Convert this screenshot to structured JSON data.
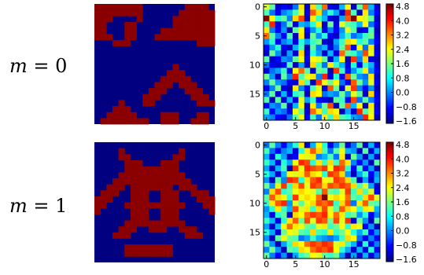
{
  "rows": [
    {
      "label_var": "m",
      "label_eq": "= 0"
    },
    {
      "label_var": "m",
      "label_eq": "= 1"
    }
  ],
  "colors": {
    "binary_on": "#8b0000",
    "binary_off": "#000080"
  },
  "colorbar_ticks": [
    "4.8",
    "4.0",
    "3.2",
    "2.4",
    "1.6",
    "0.8",
    "0.0",
    "−0.8",
    "−1.6"
  ],
  "axis_ticks": {
    "x": [
      "0",
      "5",
      "10",
      "15"
    ],
    "y": [
      "0",
      "5",
      "10",
      "15"
    ]
  },
  "chart_data": [
    {
      "type": "heatmap",
      "name": "",
      "colormap": "jet",
      "vmin": -2.0,
      "vmax": 5.0,
      "grid": 20
    },
    {
      "type": "heatmap",
      "name": "",
      "colormap": "jet",
      "vmin": -2.0,
      "vmax": 5.0,
      "grid": 20
    }
  ],
  "binary_images": [
    [
      "11111111000000011110",
      "11111111000000111111",
      "11100001000001111111",
      "11000110000001111111",
      "11000110000111111111",
      "11100110001111111111",
      "00011100000000000111",
      "00000000000000000000",
      "00000000000000000000",
      "00000000000000000000",
      "00000000000001000000",
      "00000000000011100000",
      "00000000000111110000",
      "00000000001110111000",
      "00000000011100011100",
      "00000000111000001110",
      "00001000110000000111",
      "00011100000000000000",
      "00111110000111000110",
      "01111111100111001110"
    ],
    [
      "00000000000000000000",
      "00001000000000100000",
      "00001100000001100000",
      "00000111000111000000",
      "00000111111111000000",
      "00001111111111100000",
      "00011111111111110000",
      "00111011111110111000",
      "01110011100111001110",
      "11100011100111000111",
      "11000111111111100011",
      "10000011100111000001",
      "00000011100111000000",
      "00000111111111100000",
      "00001110011100111000",
      "00011100000000011100",
      "00000000000000000000",
      "00000111111110000000",
      "00000111111110000000",
      "00000000000000000000"
    ]
  ],
  "heatmaps": [
    [
      "32000130324001302410",
      "21011230431210420310",
      "53221340321001453320",
      "24012011230203221310",
      "31010230120101320020",
      "42102030212001211220",
      "12011021220012332210",
      "01200120211012403130",
      "02101030210104221430",
      "20011230332013041300",
      "10002010321321020210",
      "01120342022042012310",
      "21021423314020421130",
      "12110032043231042130",
      "01200310230420341010",
      "12010220331112132030",
      "20201031200022041210",
      "01120130312402413030",
      "20110320432330104230",
      "11001230213232211430"
    ],
    [
      "12101230132012012010",
      "21011023432123110201",
      "10210033311213021010",
      "21021344232324310102",
      "10120434444344202010",
      "21013334332443101201",
      "10214423443344320101",
      "21342343443444432310",
      "13422333324223423230",
      "24332433345333422343",
      "23441323344423413422",
      "12321433234324332331",
      "10220334444343221201",
      "21023424344243402102",
      "10134332233223233010",
      "21023322322322321201",
      "10232211211112331010",
      "21012334444433210201",
      "12102233444432101020",
      "21010122332221010101"
    ]
  ]
}
